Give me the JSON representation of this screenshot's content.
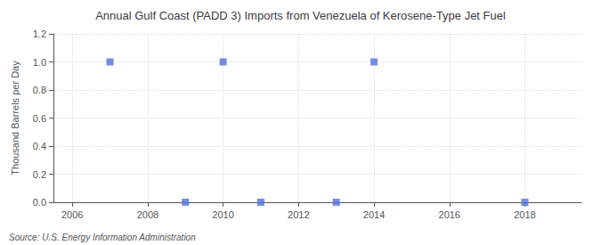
{
  "chart_data": {
    "type": "scatter",
    "title": "Annual Gulf Coast (PADD 3) Imports from Venezuela of Kerosene-Type Jet Fuel",
    "ylabel": "Thousand Barrels per Day",
    "annotations": [
      "Source: U.S. Energy Information Administration"
    ],
    "x": [
      2007,
      2009,
      2010,
      2011,
      2013,
      2014,
      2018
    ],
    "values": [
      1.0,
      0.0,
      1.0,
      0.0,
      0.0,
      1.0,
      0.0
    ],
    "marker": "square",
    "xlim": [
      2005.5,
      2019.5
    ],
    "xticks": [
      2006,
      2008,
      2010,
      2012,
      2014,
      2016,
      2018
    ],
    "ylim": [
      0.0,
      1.2
    ],
    "yticks": [
      {
        "value": 0.0,
        "label": "0.0"
      },
      0.2,
      0.4,
      0.6,
      0.8,
      {
        "value": 1.0,
        "label": "1.0"
      },
      1.2
    ],
    "grid": true
  }
}
